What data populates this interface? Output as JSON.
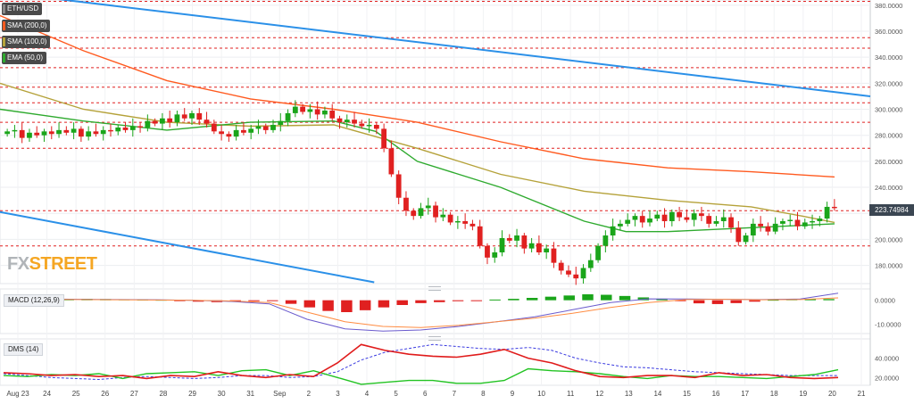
{
  "legend": [
    {
      "label": "ETH/USD",
      "color": "#4a4a4a"
    },
    {
      "label": "SMA (200,0)",
      "color": "#ff5a1f"
    },
    {
      "label": "SMA (100,0)",
      "color": "#b5a23a"
    },
    {
      "label": "EMA (50,0)",
      "color": "#2eaa2e"
    }
  ],
  "watermark": {
    "fx": "FX",
    "street": "STREET",
    "fx_color": "#b0b4b8",
    "street_color": "#f5a623"
  },
  "current_price": "223.74984",
  "macd_label": "MACD (12,26,9)",
  "dms_label": "DMS (14)",
  "colors": {
    "up": "#1aa51a",
    "down": "#e02020",
    "sma200": "#ff5a1f",
    "sma100": "#b5a23a",
    "ema50": "#2eaa2e",
    "trend": "#2b90e8",
    "level": "#e02020",
    "macd": "#6a5acd",
    "signal": "#ff8c42",
    "dmi_plus": "#22c322",
    "dmi_minus": "#e01b1b",
    "adx": "#3a3ae0"
  },
  "chart_data": [
    {
      "type": "candlestick",
      "title": "ETH/USD",
      "x_labels": [
        "Aug 23",
        "24",
        "25",
        "26",
        "27",
        "28",
        "29",
        "30",
        "31",
        "Sep",
        "2",
        "3",
        "4",
        "5",
        "6",
        "7",
        "8",
        "9",
        "10",
        "11",
        "12",
        "13",
        "14",
        "15",
        "16",
        "17",
        "18",
        "19",
        "20",
        "21"
      ],
      "y_ticks": [
        "380.0000",
        "360.0000",
        "340.0000",
        "320.0000",
        "300.0000",
        "280.0000",
        "260.0000",
        "240.0000",
        "220.0000",
        "200.0000",
        "180.0000"
      ],
      "ylim": [
        166,
        384
      ],
      "horizontal_levels": [
        383,
        355,
        347,
        332,
        317,
        305,
        290,
        270,
        222,
        195
      ],
      "trendlines": [
        {
          "from": [
            0.0,
            390
          ],
          "to": [
            1.0,
            310
          ]
        },
        {
          "from": [
            0.0,
            221
          ],
          "to": [
            0.43,
            167
          ]
        }
      ],
      "candles_closes": [
        283,
        284,
        278,
        282,
        280,
        283,
        281,
        284,
        282,
        285,
        279,
        283,
        281,
        284,
        283,
        286,
        284,
        287,
        286,
        291,
        289,
        293,
        290,
        296,
        293,
        297,
        292,
        289,
        283,
        281,
        279,
        284,
        282,
        285,
        287,
        284,
        288,
        291,
        297,
        302,
        298,
        300,
        296,
        299,
        293,
        290,
        292,
        289,
        287,
        288,
        285,
        270,
        250,
        232,
        222,
        218,
        224,
        226,
        217,
        219,
        213,
        214,
        212,
        210,
        195,
        186,
        190,
        201,
        199,
        203,
        193,
        197,
        190,
        193,
        182,
        176,
        173,
        170,
        178,
        184,
        195,
        203,
        210,
        212,
        215,
        218,
        213,
        216,
        219,
        214,
        221,
        217,
        215,
        220,
        218,
        212,
        214,
        217,
        209,
        198,
        203,
        212,
        210,
        206,
        212,
        214,
        215,
        210,
        213,
        214,
        216,
        225,
        224
      ],
      "sma200": [
        [
          0.0,
          372
        ],
        [
          0.1,
          345
        ],
        [
          0.2,
          322
        ],
        [
          0.3,
          308
        ],
        [
          0.4,
          300
        ],
        [
          0.5,
          290
        ],
        [
          0.6,
          275
        ],
        [
          0.7,
          262
        ],
        [
          0.8,
          255
        ],
        [
          0.9,
          252
        ],
        [
          1.0,
          248
        ]
      ],
      "sma100": [
        [
          0.0,
          320
        ],
        [
          0.1,
          300
        ],
        [
          0.2,
          290
        ],
        [
          0.3,
          287
        ],
        [
          0.4,
          288
        ],
        [
          0.5,
          270
        ],
        [
          0.6,
          250
        ],
        [
          0.7,
          237
        ],
        [
          0.8,
          230
        ],
        [
          0.9,
          225
        ],
        [
          0.96,
          218
        ],
        [
          1.0,
          213
        ]
      ],
      "ema50": [
        [
          0.0,
          300
        ],
        [
          0.1,
          291
        ],
        [
          0.2,
          284
        ],
        [
          0.3,
          290
        ],
        [
          0.4,
          291
        ],
        [
          0.45,
          283
        ],
        [
          0.5,
          260
        ],
        [
          0.6,
          240
        ],
        [
          0.7,
          214
        ],
        [
          0.75,
          206
        ],
        [
          0.8,
          206
        ],
        [
          0.9,
          209
        ],
        [
          1.0,
          212
        ]
      ]
    },
    {
      "type": "macd",
      "title": "MACD (12,26,9)",
      "y_ticks": [
        "0.0000",
        "-10.0000"
      ],
      "ylim": [
        -14,
        4
      ],
      "histogram": [
        0.5,
        0.6,
        0.4,
        0.5,
        0.6,
        0.5,
        0.4,
        0.3,
        0.2,
        -0.3,
        -0.6,
        -0.8,
        -0.6,
        -0.4,
        -0.2,
        -1.5,
        -3,
        -4.5,
        -5,
        -4.2,
        -3,
        -2,
        -1.2,
        -0.8,
        -0.4,
        -0.1,
        0.3,
        0.6,
        1.0,
        1.5,
        2.0,
        2.5,
        2.3,
        1.8,
        1.2,
        0.6,
        -0.3,
        -1.3,
        -1.6,
        -1.2,
        -0.6,
        0.2,
        0.4,
        0.6,
        0.5
      ],
      "macd_line": [
        0.5,
        0.6,
        0.4,
        0.3,
        0.2,
        0.0,
        -0.5,
        -1.5,
        -8,
        -12,
        -13,
        -12.5,
        -11,
        -9,
        -7,
        -4,
        -1,
        0.6,
        0.5,
        0.4,
        0.3,
        0.5,
        3
      ],
      "signal_line": [
        0.3,
        0.4,
        0.3,
        0.2,
        0.1,
        0.0,
        -0.3,
        -1,
        -5,
        -9,
        -11,
        -11.5,
        -10.5,
        -9,
        -7.5,
        -5.5,
        -3,
        -1,
        0.3,
        0.4,
        0.2,
        0.3,
        1
      ]
    },
    {
      "type": "dms",
      "title": "DMS (14)",
      "y_ticks": [
        "40.0000",
        "20.0000"
      ],
      "ylim": [
        12,
        58
      ],
      "dmi_plus": [
        22,
        21,
        23,
        22,
        24,
        19,
        24,
        25,
        26,
        22,
        27,
        28,
        22,
        27,
        20,
        13,
        15,
        17,
        17,
        14,
        14,
        17,
        29,
        27,
        26,
        24,
        21,
        19,
        22,
        21,
        21,
        20,
        19,
        21,
        23,
        28
      ],
      "dmi_minus": [
        25,
        24,
        22,
        23,
        21,
        22,
        19,
        22,
        21,
        26,
        22,
        20,
        23,
        21,
        35,
        54,
        48,
        44,
        42,
        41,
        44,
        49,
        40,
        35,
        27,
        21,
        20,
        22,
        22,
        20,
        25,
        22,
        23,
        20,
        19,
        20
      ],
      "adx": [
        24,
        22,
        20,
        19,
        18,
        20,
        21,
        20,
        19,
        20,
        22,
        22,
        20,
        21,
        26,
        38,
        46,
        50,
        54,
        52,
        50,
        49,
        51,
        48,
        40,
        35,
        31,
        30,
        28,
        26,
        25,
        24,
        23,
        22,
        22,
        22
      ]
    }
  ]
}
